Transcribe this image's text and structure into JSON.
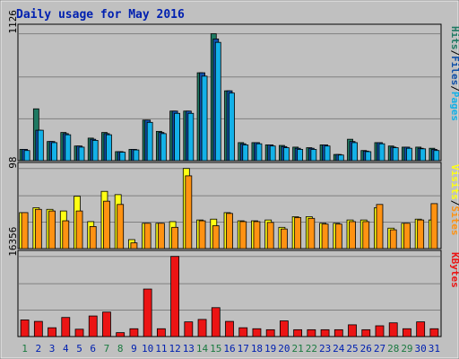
{
  "chart_data": {
    "type": "bar",
    "title": "Daily usage for May 2016",
    "x": [
      "1",
      "2",
      "3",
      "4",
      "5",
      "6",
      "7",
      "8",
      "9",
      "10",
      "11",
      "12",
      "13",
      "14",
      "15",
      "16",
      "17",
      "18",
      "19",
      "20",
      "21",
      "22",
      "23",
      "24",
      "25",
      "26",
      "27",
      "28",
      "29",
      "30",
      "31"
    ],
    "weekend_days": [
      1,
      7,
      8,
      14,
      15,
      21,
      22,
      28,
      29
    ],
    "panels": [
      {
        "id": "pfh",
        "ymax_label": "1126",
        "ylim": [
          0,
          1126
        ],
        "legend": [
          "Pages",
          "/",
          "Files",
          "/",
          "Hits"
        ],
        "series": [
          {
            "name": "Hits",
            "color": "#1f7a63",
            "values": [
              100,
              460,
              170,
              250,
              130,
              200,
              250,
              80,
              100,
              360,
              260,
              440,
              440,
              780,
              1126,
              620,
              160,
              160,
              140,
              135,
              120,
              115,
              140,
              55,
              190,
              90,
              160,
              130,
              120,
              120,
              110
            ]
          },
          {
            "name": "Files",
            "color": "#0f4fa8",
            "values": [
              100,
              270,
              170,
              240,
              130,
              190,
              240,
              80,
              100,
              360,
              250,
              440,
              440,
              780,
              1080,
              620,
              150,
              160,
              140,
              125,
              110,
              110,
              140,
              55,
              170,
              85,
              160,
              120,
              120,
              110,
              100
            ]
          },
          {
            "name": "Pages",
            "color": "#13b1e8",
            "values": [
              90,
              270,
              160,
              230,
              120,
              180,
              230,
              75,
              95,
              340,
              240,
              420,
              420,
              750,
              1050,
              600,
              140,
              150,
              130,
              115,
              100,
              100,
              130,
              50,
              160,
              80,
              150,
              115,
              110,
              105,
              90
            ]
          }
        ]
      },
      {
        "id": "sv",
        "ymax_label": "98",
        "ylim": [
          0,
          98
        ],
        "legend": [
          "Sites",
          "/",
          "Visits"
        ],
        "series": [
          {
            "name": "Visits",
            "color": "#ffff14",
            "values": [
              44,
              50,
              48,
              46,
              64,
              33,
              70,
              66,
              11,
              31,
              31,
              33,
              98,
              35,
              36,
              44,
              34,
              34,
              35,
              26,
              39,
              39,
              31,
              31,
              35,
              35,
              50,
              25,
              31,
              36,
              35
            ]
          },
          {
            "name": "Sites",
            "color": "#ff9212",
            "values": [
              44,
              48,
              46,
              34,
              46,
              27,
              58,
              54,
              7,
              31,
              31,
              26,
              89,
              34,
              28,
              43,
              33,
              33,
              32,
              24,
              38,
              37,
              30,
              30,
              33,
              33,
              54,
              23,
              31,
              35,
              55
            ]
          }
        ]
      },
      {
        "id": "kb",
        "ymax_label": "16356",
        "ylim": [
          0,
          16356
        ],
        "legend": [
          "KBytes"
        ],
        "series": [
          {
            "name": "KBytes",
            "color": "#ec1414",
            "values": [
              3400,
              3100,
              1800,
              3900,
              1500,
              4200,
              5000,
              800,
              1600,
              9700,
              1600,
              16356,
              3000,
              3500,
              5900,
              3100,
              1800,
              1600,
              1400,
              3200,
              1400,
              1400,
              1400,
              1400,
              2400,
              1400,
              2200,
              2800,
              1600,
              3000,
              1600
            ]
          }
        ]
      }
    ]
  }
}
